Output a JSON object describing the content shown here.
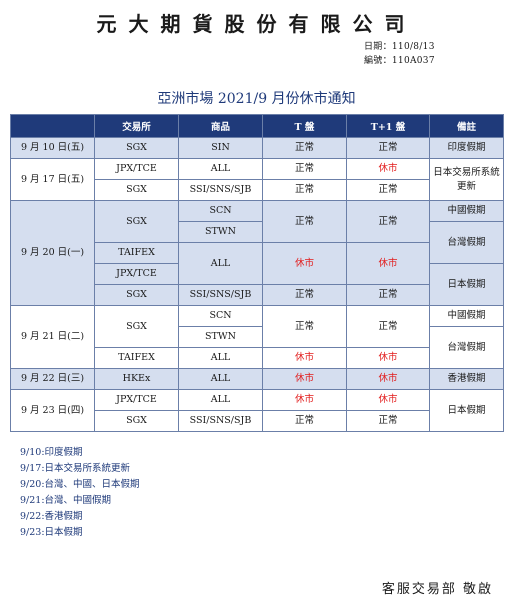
{
  "header": {
    "company": "元大期貨股份有限公司",
    "date": "日期：110/8/13",
    "code": "編號：110A037"
  },
  "title": "亞洲市場 2021/9 月份休市通知",
  "table": {
    "headers": [
      "",
      "交易所",
      "商品",
      "T 盤",
      "T+1 盤",
      "備註"
    ]
  },
  "rows": {
    "r1": {
      "date": "9 月 10 日(五)",
      "exchange": "SGX",
      "product": "SIN",
      "t": "正常",
      "t1": "正常",
      "memo": "印度假期"
    },
    "r2": {
      "date": "9 月 17 日(五)",
      "exchange_a": "JPX/TCE",
      "product_a": "ALL",
      "t_a": "正常",
      "t1_a": "休市",
      "exchange_b": "SGX",
      "product_b": "SSI/SNS/SJB",
      "t_b": "正常",
      "t1_b": "正常",
      "memo": "日本交易所系統更新"
    },
    "r3": {
      "date": "9 月 20 日(一)",
      "exchange_sgx": "SGX",
      "product_scn": "SCN",
      "product_stwn": "STWN",
      "t_sgx": "正常",
      "t1_sgx": "正常",
      "memo_china": "中國假期",
      "memo_taiwan": "台灣假期",
      "exchange_taifex": "TAIFEX",
      "exchange_jpx": "JPX/TCE",
      "product_all": "ALL",
      "t_all": "休市",
      "t1_all": "休市",
      "exchange_sgx2": "SGX",
      "product_ssi": "SSI/SNS/SJB",
      "t_sgx2": "正常",
      "t1_sgx2": "正常",
      "memo_japan": "日本假期"
    },
    "r4": {
      "date": "9 月 21 日(二)",
      "exchange_sgx": "SGX",
      "product_scn": "SCN",
      "product_stwn": "STWN",
      "t_sgx": "正常",
      "t1_sgx": "正常",
      "memo_china": "中國假期",
      "memo_taiwan": "台灣假期",
      "exchange_taifex": "TAIFEX",
      "product_all": "ALL",
      "t_all": "休市",
      "t1_all": "休市"
    },
    "r5": {
      "date": "9 月 22 日(三)",
      "exchange": "HKEx",
      "product": "ALL",
      "t": "休市",
      "t1": "休市",
      "memo": "香港假期"
    },
    "r6": {
      "date": "9 月 23 日(四)",
      "exchange_a": "JPX/TCE",
      "product_a": "ALL",
      "t_a": "休市",
      "t1_a": "休市",
      "exchange_b": "SGX",
      "product_b": "SSI/SNS/SJB",
      "t_b": "正常",
      "t1_b": "正常",
      "memo": "日本假期"
    }
  },
  "notes": [
    "9/10:印度假期",
    "9/17:日本交易所系統更新",
    "9/20:台灣、中國、日本假期",
    "9/21:台灣、中國假期",
    "9/22:香港假期",
    "9/23:日本假期"
  ],
  "signature": "客服交易部 敬啟",
  "colors": {
    "header_bg": "#1f3a7a",
    "highlight": "#d5deef",
    "closed": "#e21b1b"
  }
}
